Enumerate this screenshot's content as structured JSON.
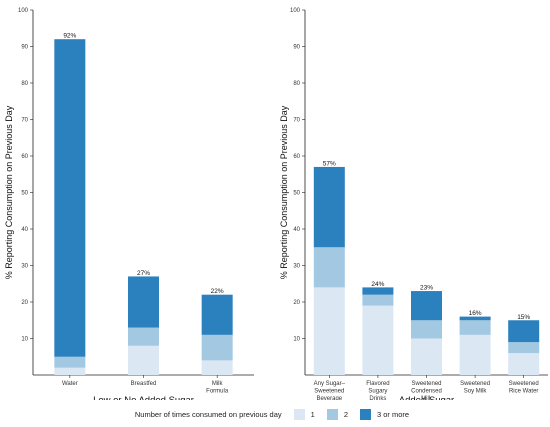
{
  "chart_data": [
    {
      "type": "bar",
      "stacked": true,
      "xlabel": "Low or No Added Sugar",
      "ylabel": "% Reporting Consumption on Previous Day",
      "ylim": [
        0,
        100
      ],
      "yticks": [
        10,
        20,
        30,
        40,
        50,
        60,
        70,
        80,
        90,
        100
      ],
      "categories": [
        [
          "Water"
        ],
        [
          "Breastfed"
        ],
        [
          "Milk",
          "Formula"
        ]
      ],
      "series": [
        {
          "name": "1",
          "values": [
            2,
            8,
            4
          ]
        },
        {
          "name": "2",
          "values": [
            3,
            5,
            7
          ]
        },
        {
          "name": "3 or more",
          "values": [
            87,
            14,
            11
          ]
        }
      ],
      "totals": [
        92,
        27,
        22
      ],
      "total_labels": [
        "92%",
        "27%",
        "22%"
      ],
      "grid": false
    },
    {
      "type": "bar",
      "stacked": true,
      "xlabel": "Added Sugar",
      "ylabel": "% Reporting Consumption on Previous Day",
      "ylim": [
        0,
        100
      ],
      "yticks": [
        10,
        20,
        30,
        40,
        50,
        60,
        70,
        80,
        90,
        100
      ],
      "categories": [
        [
          "Any Sugar–",
          "Sweetened",
          "Beverage"
        ],
        [
          "Flavored",
          "Sugary",
          "Drinks"
        ],
        [
          "Sweetened",
          "Condensed",
          "Milk"
        ],
        [
          "Sweetened",
          "Soy Milk"
        ],
        [
          "Sweetened",
          "Rice Water"
        ]
      ],
      "series": [
        {
          "name": "1",
          "values": [
            24,
            19,
            10,
            11,
            6
          ]
        },
        {
          "name": "2",
          "values": [
            11,
            3,
            5,
            4,
            3
          ]
        },
        {
          "name": "3 or more",
          "values": [
            22,
            2,
            8,
            1,
            6
          ]
        }
      ],
      "totals": [
        57,
        24,
        23,
        16,
        15
      ],
      "total_labels": [
        "57%",
        "24%",
        "23%",
        "16%",
        "15%"
      ],
      "grid": false
    }
  ],
  "legend": {
    "title": "Number of times consumed on previous day",
    "items": [
      {
        "label": "1",
        "color": "#dbe8f4"
      },
      {
        "label": "2",
        "color": "#a3c8e2"
      },
      {
        "label": "3 or more",
        "color": "#2b80be"
      }
    ],
    "placement": "bottom"
  }
}
